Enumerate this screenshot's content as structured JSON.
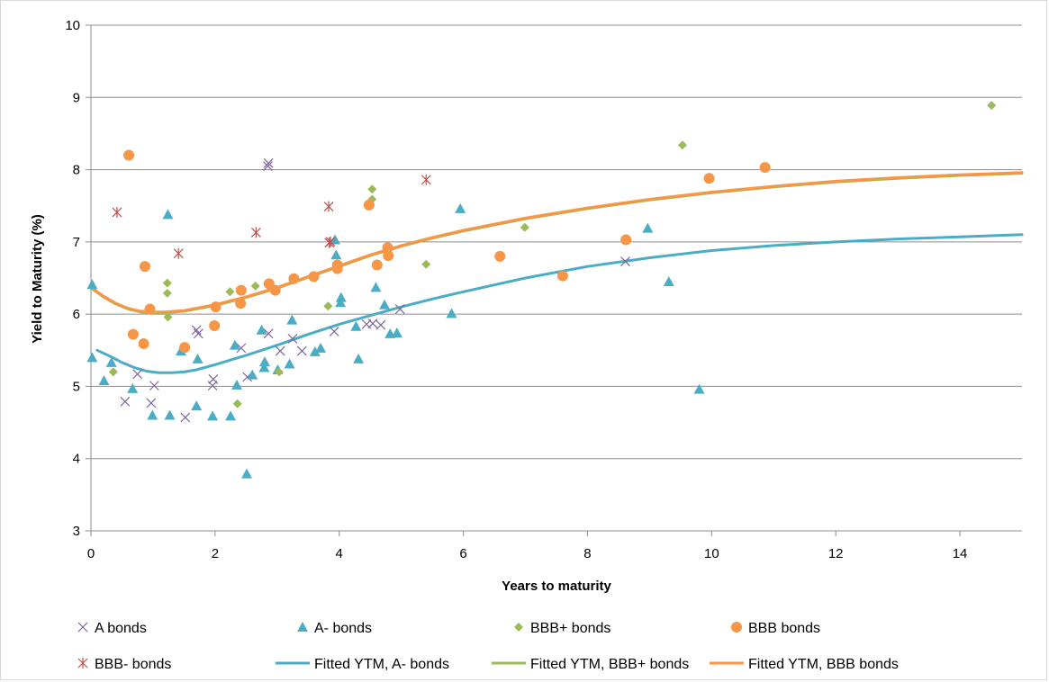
{
  "colors": {
    "a": "#8064a2",
    "a_minus": "#4bacc6",
    "bbb_plus": "#9bbb59",
    "bbb": "#f79646",
    "bbb_minus": "#c0504d",
    "grid": "#8c8c8c"
  },
  "chart_data": {
    "type": "scatter",
    "title": "",
    "xlabel": "Years to maturity",
    "ylabel": "Yield to Maturity (%)",
    "xlim": [
      0,
      15
    ],
    "ylim": [
      3,
      10
    ],
    "x_ticks": [
      0,
      2,
      4,
      6,
      8,
      10,
      12,
      14
    ],
    "y_ticks": [
      3,
      4,
      5,
      6,
      7,
      8,
      9,
      10
    ],
    "grid": "horizontal",
    "legend_position": "bottom",
    "series": [
      {
        "name": "A bonds",
        "kind": "scatter",
        "marker": "x",
        "color": "#8064a2",
        "points": [
          [
            0.55,
            4.79
          ],
          [
            0.75,
            5.17
          ],
          [
            0.97,
            4.77
          ],
          [
            1.02,
            5.01
          ],
          [
            1.52,
            4.57
          ],
          [
            1.7,
            5.78
          ],
          [
            1.73,
            5.73
          ],
          [
            1.96,
            5.01
          ],
          [
            1.97,
            5.1
          ],
          [
            2.42,
            5.53
          ],
          [
            2.52,
            5.13
          ],
          [
            2.85,
            8.05
          ],
          [
            2.86,
            8.09
          ],
          [
            2.86,
            5.73
          ],
          [
            3.05,
            5.49
          ],
          [
            3.25,
            5.66
          ],
          [
            3.4,
            5.49
          ],
          [
            3.92,
            5.76
          ],
          [
            4.44,
            5.86
          ],
          [
            4.54,
            5.87
          ],
          [
            4.67,
            5.85
          ],
          [
            4.98,
            6.07
          ],
          [
            8.61,
            6.73
          ]
        ]
      },
      {
        "name": "A- bonds",
        "kind": "scatter",
        "marker": "triangle",
        "color": "#4bacc6",
        "points": [
          [
            0.02,
            6.41
          ],
          [
            0.02,
            5.4
          ],
          [
            0.21,
            5.08
          ],
          [
            0.33,
            5.33
          ],
          [
            0.67,
            4.97
          ],
          [
            0.99,
            4.6
          ],
          [
            1.24,
            7.38
          ],
          [
            1.27,
            4.6
          ],
          [
            1.45,
            5.49
          ],
          [
            1.7,
            4.73
          ],
          [
            1.72,
            5.38
          ],
          [
            1.96,
            4.59
          ],
          [
            2.25,
            4.59
          ],
          [
            2.32,
            5.57
          ],
          [
            2.35,
            5.02
          ],
          [
            2.51,
            3.79
          ],
          [
            2.6,
            5.16
          ],
          [
            2.75,
            5.78
          ],
          [
            2.79,
            5.26
          ],
          [
            2.8,
            5.34
          ],
          [
            3.01,
            5.23
          ],
          [
            3.2,
            5.31
          ],
          [
            3.24,
            5.92
          ],
          [
            3.61,
            5.48
          ],
          [
            3.7,
            5.53
          ],
          [
            3.93,
            7.03
          ],
          [
            3.95,
            6.82
          ],
          [
            4.02,
            6.16
          ],
          [
            4.03,
            6.23
          ],
          [
            4.27,
            5.83
          ],
          [
            4.31,
            5.38
          ],
          [
            4.59,
            6.37
          ],
          [
            4.73,
            6.13
          ],
          [
            4.82,
            5.73
          ],
          [
            4.93,
            5.74
          ],
          [
            5.81,
            6.01
          ],
          [
            5.95,
            7.46
          ],
          [
            8.97,
            7.19
          ],
          [
            9.31,
            6.45
          ],
          [
            9.8,
            4.96
          ]
        ]
      },
      {
        "name": "BBB+ bonds",
        "kind": "scatter",
        "marker": "diamond",
        "color": "#9bbb59",
        "points": [
          [
            0.36,
            5.2
          ],
          [
            1.23,
            6.43
          ],
          [
            1.23,
            6.29
          ],
          [
            1.24,
            5.96
          ],
          [
            2.24,
            6.31
          ],
          [
            2.36,
            4.76
          ],
          [
            2.65,
            6.39
          ],
          [
            3.03,
            5.2
          ],
          [
            3.82,
            6.11
          ],
          [
            4.53,
            7.73
          ],
          [
            4.53,
            7.59
          ],
          [
            5.4,
            6.69
          ],
          [
            6.99,
            7.2
          ],
          [
            9.53,
            8.34
          ],
          [
            14.51,
            8.89
          ]
        ]
      },
      {
        "name": "BBB bonds",
        "kind": "scatter",
        "marker": "circle",
        "color": "#f79646",
        "points": [
          [
            0.61,
            8.2
          ],
          [
            0.68,
            5.72
          ],
          [
            0.85,
            5.59
          ],
          [
            0.87,
            6.66
          ],
          [
            0.95,
            6.07
          ],
          [
            1.51,
            5.54
          ],
          [
            1.99,
            5.84
          ],
          [
            2.01,
            6.1
          ],
          [
            2.41,
            6.15
          ],
          [
            2.42,
            6.33
          ],
          [
            2.87,
            6.42
          ],
          [
            2.97,
            6.33
          ],
          [
            3.27,
            6.49
          ],
          [
            3.59,
            6.52
          ],
          [
            3.97,
            6.68
          ],
          [
            3.97,
            6.63
          ],
          [
            4.48,
            7.51
          ],
          [
            4.61,
            6.68
          ],
          [
            4.78,
            6.92
          ],
          [
            4.79,
            6.81
          ],
          [
            6.59,
            6.8
          ],
          [
            7.6,
            6.53
          ],
          [
            8.62,
            7.03
          ],
          [
            9.96,
            7.88
          ],
          [
            10.86,
            8.03
          ]
        ]
      },
      {
        "name": "BBB- bonds",
        "kind": "scatter",
        "marker": "asterisk",
        "color": "#c0504d",
        "points": [
          [
            0.42,
            7.41
          ],
          [
            1.41,
            6.84
          ],
          [
            2.66,
            7.13
          ],
          [
            3.83,
            7.49
          ],
          [
            3.84,
            6.99
          ],
          [
            3.86,
            7.0
          ],
          [
            5.4,
            7.86
          ]
        ]
      },
      {
        "name": "Fitted YTM, A- bonds",
        "kind": "line",
        "color": "#4bacc6",
        "points": [
          [
            0.1,
            5.5
          ],
          [
            0.3,
            5.42
          ],
          [
            0.5,
            5.33
          ],
          [
            0.7,
            5.26
          ],
          [
            0.9,
            5.21
          ],
          [
            1.1,
            5.19
          ],
          [
            1.3,
            5.19
          ],
          [
            1.5,
            5.2
          ],
          [
            1.7,
            5.23
          ],
          [
            2.0,
            5.3
          ],
          [
            2.5,
            5.43
          ],
          [
            3.0,
            5.57
          ],
          [
            3.5,
            5.72
          ],
          [
            4.0,
            5.86
          ],
          [
            4.5,
            5.98
          ],
          [
            5.0,
            6.1
          ],
          [
            5.5,
            6.21
          ],
          [
            6.0,
            6.31
          ],
          [
            7.0,
            6.5
          ],
          [
            8.0,
            6.66
          ],
          [
            9.0,
            6.78
          ],
          [
            10.0,
            6.88
          ],
          [
            11.0,
            6.95
          ],
          [
            12.0,
            7.0
          ],
          [
            13.0,
            7.04
          ],
          [
            14.0,
            7.07
          ],
          [
            15.0,
            7.1
          ]
        ]
      },
      {
        "name": "Fitted YTM, BBB+ bonds",
        "kind": "line",
        "color": "#9bbb59",
        "points": [
          [
            0.0,
            6.36
          ],
          [
            0.2,
            6.24
          ],
          [
            0.4,
            6.14
          ],
          [
            0.6,
            6.07
          ],
          [
            0.8,
            6.03
          ],
          [
            1.0,
            6.02
          ],
          [
            1.2,
            6.02
          ],
          [
            1.5,
            6.04
          ],
          [
            2.0,
            6.12
          ],
          [
            2.5,
            6.23
          ],
          [
            3.0,
            6.36
          ],
          [
            3.5,
            6.51
          ],
          [
            4.0,
            6.66
          ],
          [
            4.5,
            6.81
          ],
          [
            5.0,
            6.94
          ],
          [
            5.5,
            7.05
          ],
          [
            6.0,
            7.15
          ],
          [
            7.0,
            7.32
          ],
          [
            8.0,
            7.46
          ],
          [
            9.0,
            7.58
          ],
          [
            10.0,
            7.68
          ],
          [
            11.0,
            7.76
          ],
          [
            12.0,
            7.83
          ],
          [
            13.0,
            7.88
          ],
          [
            14.0,
            7.92
          ],
          [
            15.0,
            7.95
          ]
        ]
      },
      {
        "name": "Fitted YTM, BBB bonds",
        "kind": "line",
        "color": "#f79646",
        "points": [
          [
            0.0,
            6.37
          ],
          [
            0.2,
            6.25
          ],
          [
            0.4,
            6.15
          ],
          [
            0.6,
            6.08
          ],
          [
            0.8,
            6.04
          ],
          [
            1.0,
            6.03
          ],
          [
            1.2,
            6.03
          ],
          [
            1.5,
            6.05
          ],
          [
            2.0,
            6.13
          ],
          [
            2.5,
            6.24
          ],
          [
            3.0,
            6.37
          ],
          [
            3.5,
            6.52
          ],
          [
            4.0,
            6.67
          ],
          [
            4.5,
            6.82
          ],
          [
            5.0,
            6.95
          ],
          [
            5.5,
            7.06
          ],
          [
            6.0,
            7.16
          ],
          [
            7.0,
            7.33
          ],
          [
            8.0,
            7.47
          ],
          [
            9.0,
            7.59
          ],
          [
            10.0,
            7.69
          ],
          [
            11.0,
            7.77
          ],
          [
            12.0,
            7.84
          ],
          [
            13.0,
            7.89
          ],
          [
            14.0,
            7.93
          ],
          [
            15.0,
            7.96
          ]
        ]
      }
    ]
  }
}
